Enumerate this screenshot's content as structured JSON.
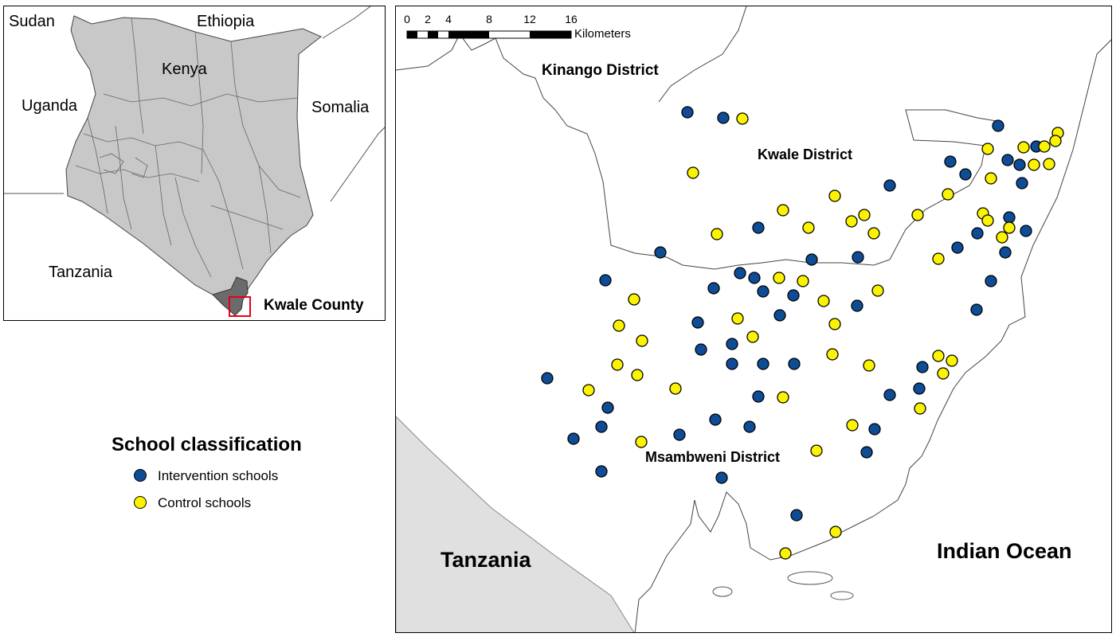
{
  "colors": {
    "intervention": "#0e4c96",
    "control": "#fbf300",
    "kenya_fill": "#c8c8c8",
    "kwale_fill": "#6b6b6b",
    "tanzania_fill": "#e0e0e0",
    "highlight_box": "#e3001b"
  },
  "inset": {
    "labels": {
      "sudan": "Sudan",
      "ethiopia": "Ethiopia",
      "kenya": "Kenya",
      "uganda": "Uganda",
      "somalia": "Somalia",
      "tanzania": "Tanzania",
      "kwale_county": "Kwale County"
    }
  },
  "main_map": {
    "labels": {
      "kinango": "Kinango District",
      "kwale": "Kwale District",
      "msambweni": "Msambweni District",
      "tanzania": "Tanzania",
      "indian_ocean": "Indian Ocean"
    },
    "scale_bar": {
      "ticks": [
        "0",
        "2",
        "4",
        "8",
        "12",
        "16"
      ],
      "unit": "Kilometers"
    }
  },
  "legend": {
    "title": "School classification",
    "items": [
      {
        "label": "Intervention schools",
        "class": "intervention"
      },
      {
        "label": "Control schools",
        "class": "control"
      }
    ]
  },
  "schools": {
    "intervention": 50,
    "control": 51
  }
}
